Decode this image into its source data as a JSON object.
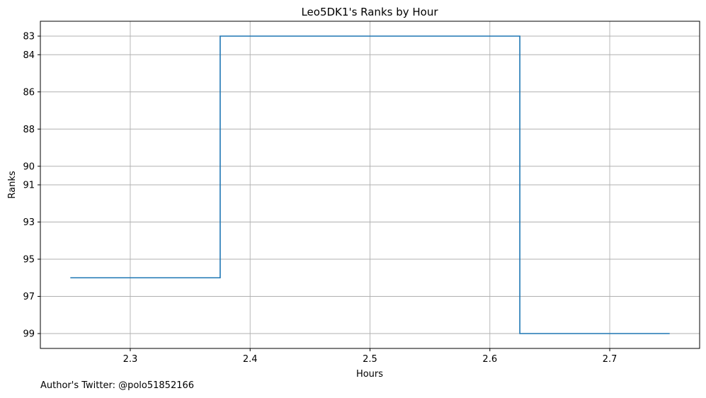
{
  "chart_data": {
    "type": "line",
    "drawstyle": "steps-mid",
    "title": "Leo5DK1's Ranks by Hour",
    "xlabel": "Hours",
    "ylabel": "Ranks",
    "xlim": [
      2.225,
      2.775
    ],
    "ylim": [
      99.8,
      82.2
    ],
    "y_inverted": true,
    "grid": true,
    "line_color": "#1f77b4",
    "x_ticks": [
      2.3,
      2.4,
      2.5,
      2.6,
      2.7
    ],
    "x_tick_labels": [
      "2.3",
      "2.4",
      "2.5",
      "2.6",
      "2.7"
    ],
    "y_ticks": [
      83,
      84,
      86,
      88,
      90,
      91,
      93,
      95,
      97,
      99
    ],
    "y_tick_labels": [
      "83",
      "84",
      "86",
      "88",
      "90",
      "91",
      "93",
      "95",
      "97",
      "99"
    ],
    "series": [
      {
        "x": [
          2.25,
          2.5,
          2.75
        ],
        "y": [
          96,
          83,
          99
        ]
      }
    ]
  },
  "footer": "Author's Twitter: @polo51852166"
}
